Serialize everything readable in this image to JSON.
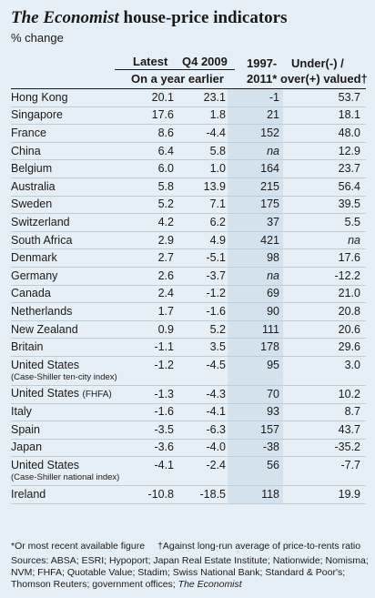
{
  "title_part1": "The Economist",
  "title_part2": " house-price indicators",
  "subtitle": "% change",
  "headers": {
    "latest": "Latest",
    "q4_2009": "Q4 2009",
    "on_year_earlier": "On a year earlier",
    "col3_line1": "1997-",
    "col3_line2": "2011*",
    "col4_line1": "Under(-) /",
    "col4_line2": "over(+) valued†"
  },
  "chart_data": {
    "type": "table",
    "title": "The Economist house-price indicators",
    "subtitle": "% change",
    "columns": [
      "Latest",
      "Q4 2009",
      "1997-2011*",
      "Under(-) / over(+) valued†"
    ],
    "rows": [
      {
        "country": "Hong Kong",
        "note": "",
        "latest": "20.1",
        "q4_2009": "23.1",
        "since_1997": "-1",
        "valuation": "53.7"
      },
      {
        "country": "Singapore",
        "note": "",
        "latest": "17.6",
        "q4_2009": "1.8",
        "since_1997": "21",
        "valuation": "18.1"
      },
      {
        "country": "France",
        "note": "",
        "latest": "8.6",
        "q4_2009": "-4.4",
        "since_1997": "152",
        "valuation": "48.0"
      },
      {
        "country": "China",
        "note": "",
        "latest": "6.4",
        "q4_2009": "5.8",
        "since_1997": "na",
        "valuation": "12.9"
      },
      {
        "country": "Belgium",
        "note": "",
        "latest": "6.0",
        "q4_2009": "1.0",
        "since_1997": "164",
        "valuation": "23.7"
      },
      {
        "country": "Australia",
        "note": "",
        "latest": "5.8",
        "q4_2009": "13.9",
        "since_1997": "215",
        "valuation": "56.4"
      },
      {
        "country": "Sweden",
        "note": "",
        "latest": "5.2",
        "q4_2009": "7.1",
        "since_1997": "175",
        "valuation": "39.5"
      },
      {
        "country": "Switzerland",
        "note": "",
        "latest": "4.2",
        "q4_2009": "6.2",
        "since_1997": "37",
        "valuation": "5.5"
      },
      {
        "country": "South Africa",
        "note": "",
        "latest": "2.9",
        "q4_2009": "4.9",
        "since_1997": "421",
        "valuation": "na"
      },
      {
        "country": "Denmark",
        "note": "",
        "latest": "2.7",
        "q4_2009": "-5.1",
        "since_1997": "98",
        "valuation": "17.6"
      },
      {
        "country": "Germany",
        "note": "",
        "latest": "2.6",
        "q4_2009": "-3.7",
        "since_1997": "na",
        "valuation": "-12.2"
      },
      {
        "country": "Canada",
        "note": "",
        "latest": "2.4",
        "q4_2009": "-1.2",
        "since_1997": "69",
        "valuation": "21.0"
      },
      {
        "country": "Netherlands",
        "note": "",
        "latest": "1.7",
        "q4_2009": "-1.6",
        "since_1997": "90",
        "valuation": "20.8"
      },
      {
        "country": "New Zealand",
        "note": "",
        "latest": "0.9",
        "q4_2009": "5.2",
        "since_1997": "111",
        "valuation": "20.6"
      },
      {
        "country": "Britain",
        "note": "",
        "latest": "-1.1",
        "q4_2009": "3.5",
        "since_1997": "178",
        "valuation": "29.6"
      },
      {
        "country": "United States",
        "note": "(Case-Shiller ten-city index)",
        "latest": "-1.2",
        "q4_2009": "-4.5",
        "since_1997": "95",
        "valuation": "3.0"
      },
      {
        "country": "United States",
        "note": "(FHFA)",
        "latest": "-1.3",
        "q4_2009": "-4.3",
        "since_1997": "70",
        "valuation": "10.2"
      },
      {
        "country": "Italy",
        "note": "",
        "latest": "-1.6",
        "q4_2009": "-4.1",
        "since_1997": "93",
        "valuation": "8.7"
      },
      {
        "country": "Spain",
        "note": "",
        "latest": "-3.5",
        "q4_2009": "-6.3",
        "since_1997": "157",
        "valuation": "43.7"
      },
      {
        "country": "Japan",
        "note": "",
        "latest": "-3.6",
        "q4_2009": "-4.0",
        "since_1997": "-38",
        "valuation": "-35.2"
      },
      {
        "country": "United States",
        "note": "(Case-Shiller national index)",
        "latest": "-4.1",
        "q4_2009": "-2.4",
        "since_1997": "56",
        "valuation": "-7.7"
      },
      {
        "country": "Ireland",
        "note": "",
        "latest": "-10.8",
        "q4_2009": "-18.5",
        "since_1997": "118",
        "valuation": "19.9"
      }
    ]
  },
  "footnote_1": "*Or most recent available figure",
  "footnote_2": "†Against long-run average of price-to-rents ratio",
  "sources": "Sources: ABSA; ESRI; Hypoport; Japan Real Estate Institute; Nationwide; Nomisma; NVM; FHFA; Quotable Value; Stadim; Swiss National Bank; Standard & Poor's; Thomson Reuters; government offices; ",
  "sources_end": "The Economist"
}
